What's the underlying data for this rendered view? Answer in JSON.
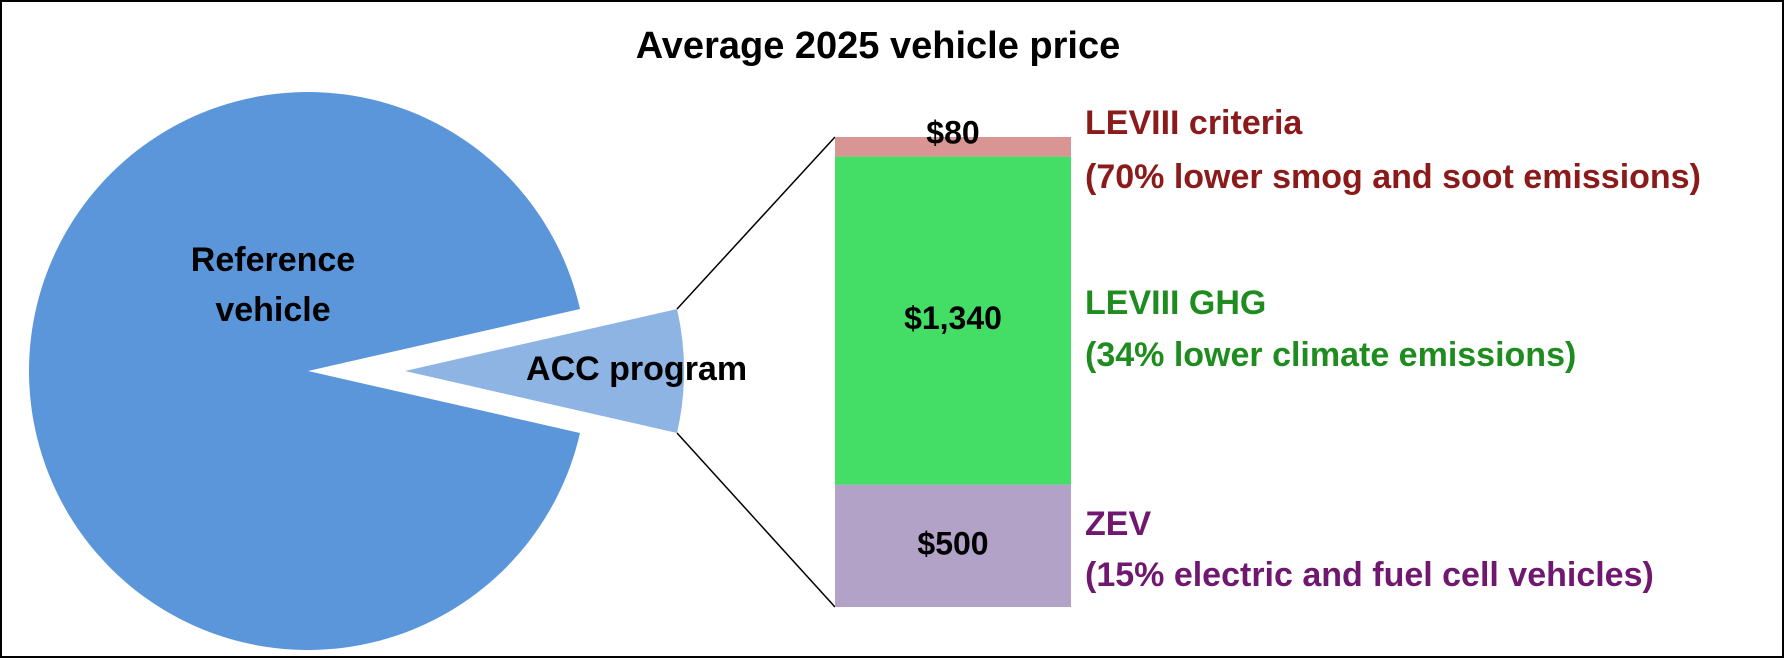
{
  "chart_data": {
    "type": "pie",
    "title": "Average 2025 vehicle price",
    "pie": {
      "labels": [
        "Reference vehicle",
        "ACC program"
      ],
      "values": [
        25000,
        1920
      ],
      "colors": [
        "#5b96da",
        "#8eb4e3"
      ]
    },
    "bar": {
      "categories": [
        "ZEV",
        "LEVIII GHG",
        "LEVIII criteria"
      ],
      "descriptions": [
        "(15% electric and fuel cell vehicles)",
        "(34% lower climate emissions)",
        "(70% lower smog and soot emissions)"
      ],
      "values": [
        500,
        1340,
        80
      ],
      "value_labels": [
        "$500",
        "$1,340",
        "$80"
      ],
      "colors": [
        "#b3a2c7",
        "#44dd66",
        "#d99594"
      ],
      "label_colors": [
        "#70186f",
        "#1e8c1e",
        "#8b1a1a"
      ]
    }
  }
}
